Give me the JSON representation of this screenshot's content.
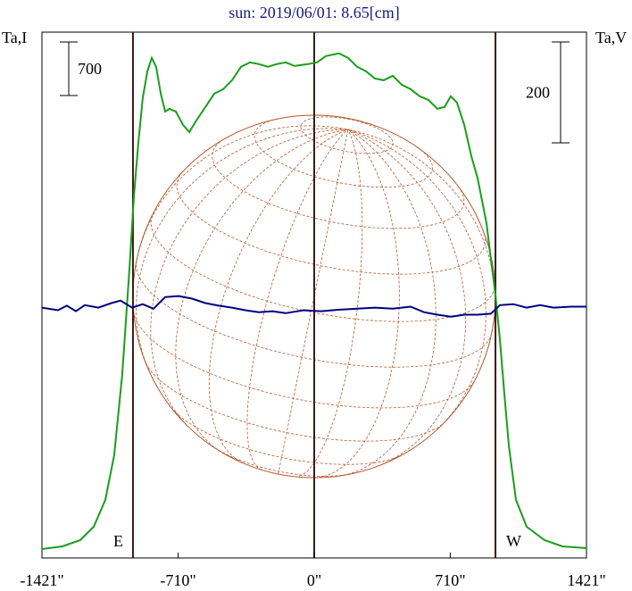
{
  "chart_data": {
    "type": "line",
    "title": "sun: 2019/06/01: 8.65[cm]",
    "ylabel": "Ta,I",
    "y2label": "Ta,V",
    "xlim": [
      -1421,
      1421
    ],
    "xticks": [
      {
        "value": -1421,
        "label": "-1421\""
      },
      {
        "value": -710,
        "label": "-710\""
      },
      {
        "value": 0,
        "label": "0\""
      },
      {
        "value": 710,
        "label": "710\""
      },
      {
        "value": 1421,
        "label": "1421\""
      }
    ],
    "ylim": [
      0,
      6872
    ],
    "y2lim": [
      -496,
      546
    ],
    "vlines": [
      {
        "value": -946,
        "label": "E"
      },
      {
        "value": 0
      },
      {
        "value": 946,
        "label": "W"
      }
    ],
    "scale_bars": [
      {
        "value": 700,
        "axis": "y"
      },
      {
        "value": 200,
        "axis": "y2"
      }
    ],
    "series": [
      {
        "name": "I",
        "color": "#1a9e1a",
        "x": [
          -1421,
          -1314,
          -1221,
          -1151,
          -1090,
          -1044,
          -1002,
          -964,
          -941,
          -918,
          -895,
          -871,
          -848,
          -825,
          -801,
          -778,
          -755,
          -722,
          -685,
          -652,
          -615,
          -568,
          -522,
          -475,
          -429,
          -382,
          -335,
          -289,
          -242,
          -196,
          -149,
          -102,
          -33,
          14,
          61,
          130,
          177,
          224,
          270,
          317,
          363,
          410,
          457,
          503,
          550,
          596,
          643,
          680,
          713,
          745,
          783,
          820,
          853,
          899,
          922,
          946,
          969,
          992,
          1016,
          1053,
          1109,
          1202,
          1295,
          1421
        ],
        "values": [
          117,
          152,
          233,
          408,
          759,
          1342,
          2392,
          3793,
          4726,
          5427,
          6010,
          6360,
          6535,
          6419,
          6068,
          5835,
          5870,
          5835,
          5660,
          5567,
          5718,
          5893,
          6068,
          6127,
          6243,
          6419,
          6477,
          6454,
          6419,
          6454,
          6477,
          6430,
          6454,
          6477,
          6559,
          6594,
          6535,
          6419,
          6360,
          6267,
          6243,
          6302,
          6185,
          6127,
          6034,
          5987,
          5870,
          5893,
          6034,
          5952,
          5660,
          5252,
          4960,
          4376,
          3909,
          3443,
          2859,
          2159,
          1459,
          759,
          408,
          233,
          152,
          128
        ]
      },
      {
        "name": "V",
        "color": "#000080",
        "axis": "y2",
        "x": [
          -1421,
          -1337,
          -1291,
          -1244,
          -1197,
          -1127,
          -1058,
          -1011,
          -950,
          -895,
          -839,
          -778,
          -708,
          -638,
          -568,
          -499,
          -429,
          -359,
          -289,
          -219,
          -149,
          -56,
          37,
          130,
          224,
          317,
          410,
          503,
          573,
          643,
          713,
          783,
          853,
          922,
          969,
          1039,
          1109,
          1179,
          1249,
          1342,
          1421
        ],
        "values": [
          0,
          -5,
          4,
          -7,
          5,
          0,
          9,
          14,
          0,
          7,
          -2,
          21,
          23,
          18,
          9,
          4,
          0,
          -5,
          -9,
          -7,
          -11,
          -5,
          -7,
          -4,
          -2,
          0,
          -2,
          2,
          -9,
          -14,
          -18,
          -14,
          -14,
          -12,
          5,
          7,
          0,
          5,
          0,
          2,
          2
        ]
      }
    ]
  }
}
